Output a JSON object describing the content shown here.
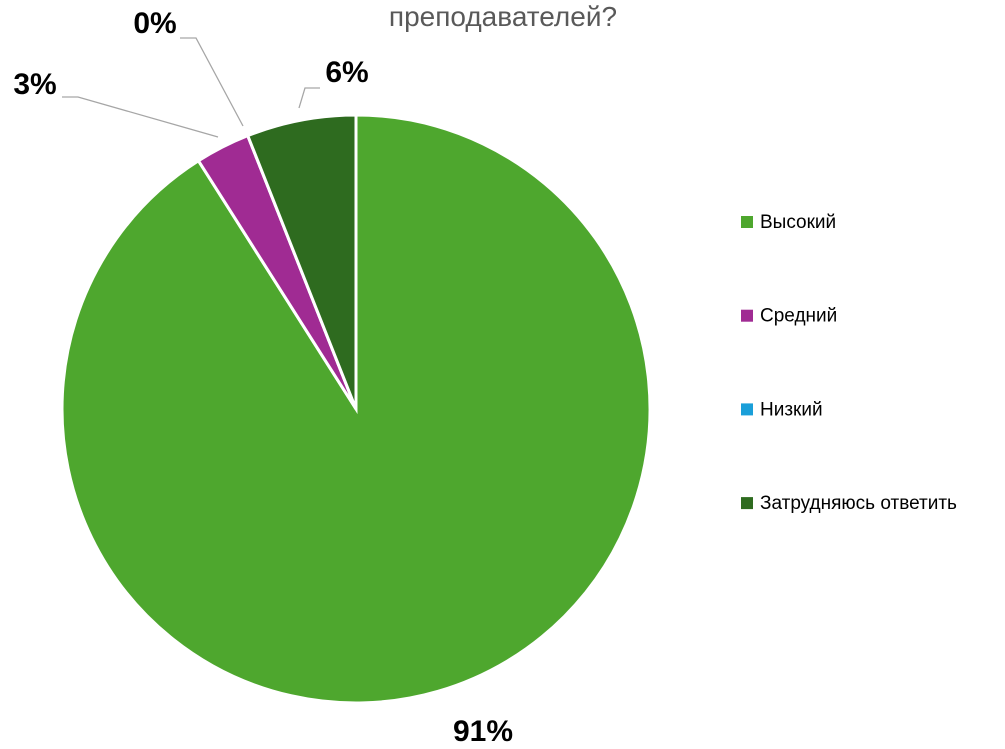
{
  "chart_data": {
    "type": "pie",
    "title": "преподавателей?",
    "categories": [
      "Высокий",
      "Средний",
      "Низкий",
      "Затрудняюсь ответить"
    ],
    "values": [
      91,
      3,
      0,
      6
    ],
    "value_labels": [
      "91%",
      "3%",
      "0%",
      "6%"
    ],
    "colors": [
      "#4ea72e",
      "#a02b93",
      "#1a9fd9",
      "#2e6b1f"
    ],
    "legend": "right"
  }
}
